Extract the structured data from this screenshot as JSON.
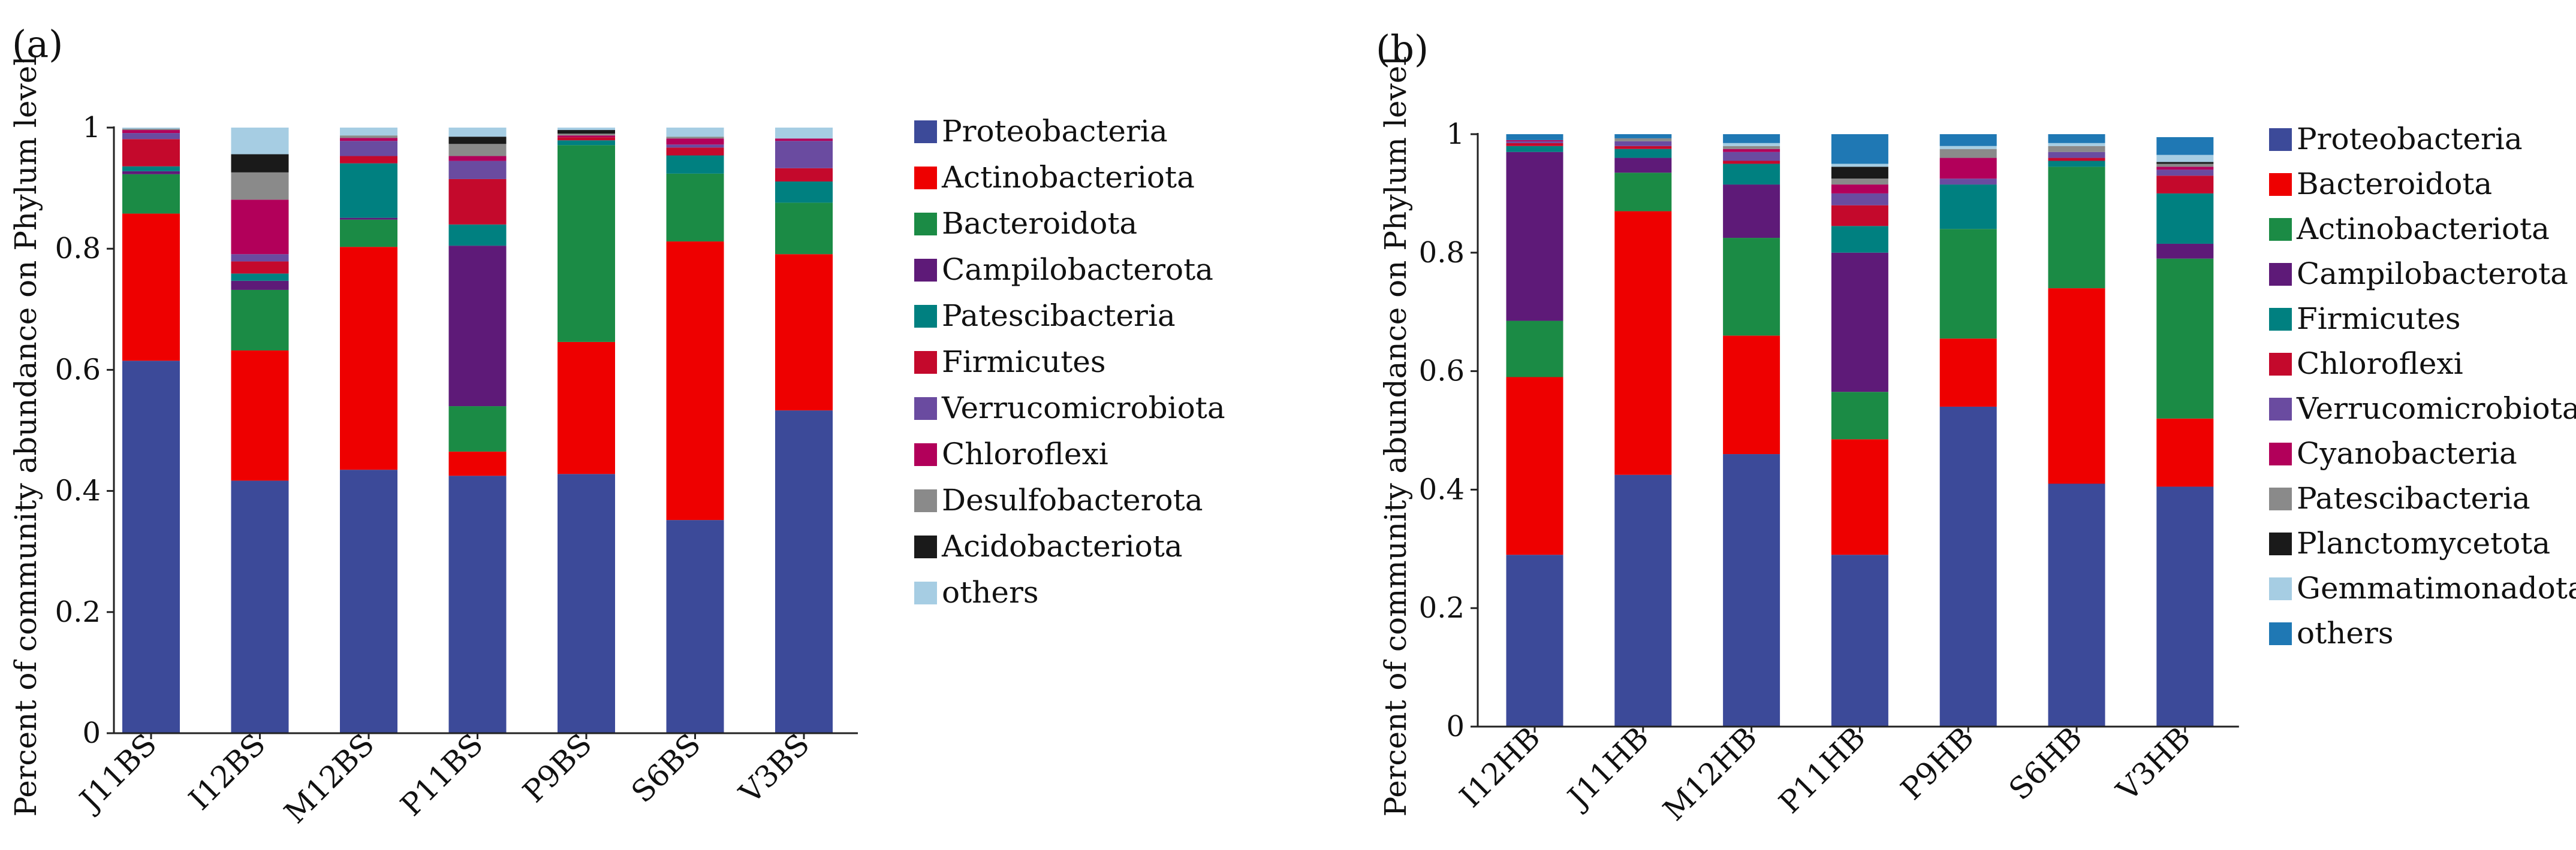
{
  "chart_data": [
    {
      "type": "bar",
      "stacked": true,
      "panel_label": "(a)",
      "ylabel": "Percent of community abundance on Phylum level",
      "ylim": [
        0,
        1
      ],
      "yticks": [
        "0",
        "0.2",
        "0.4",
        "0.6",
        "0.8",
        "1"
      ],
      "categories": [
        "J11BS",
        "I12BS",
        "M12BS",
        "P11BS",
        "P9BS",
        "S6BS",
        "V3BS"
      ],
      "series": [
        {
          "name": "Proteobacteria",
          "color": "#3c4a99",
          "values": [
            0.615,
            0.417,
            0.435,
            0.425,
            0.428,
            0.352,
            0.533
          ]
        },
        {
          "name": "Actinobacteriota",
          "color": "#ee0000",
          "values": [
            0.243,
            0.215,
            0.368,
            0.04,
            0.218,
            0.46,
            0.258
          ]
        },
        {
          "name": "Bacteroidota",
          "color": "#1b8b45",
          "values": [
            0.065,
            0.1,
            0.045,
            0.075,
            0.325,
            0.112,
            0.085
          ]
        },
        {
          "name": "Campilobacterota",
          "color": "#5e1a78",
          "values": [
            0.005,
            0.015,
            0.003,
            0.265,
            0.0,
            0.0,
            0.0
          ]
        },
        {
          "name": "Patescibacteria",
          "color": "#008080",
          "values": [
            0.008,
            0.012,
            0.09,
            0.035,
            0.008,
            0.03,
            0.035
          ]
        },
        {
          "name": "Firmicutes",
          "color": "#c4092c",
          "values": [
            0.045,
            0.02,
            0.012,
            0.075,
            0.005,
            0.013,
            0.022
          ]
        },
        {
          "name": "Verrucomicrobiota",
          "color": "#6a4ba0",
          "values": [
            0.01,
            0.012,
            0.025,
            0.03,
            0.0,
            0.005,
            0.045
          ]
        },
        {
          "name": "Chloroflexi",
          "color": "#b2005a",
          "values": [
            0.005,
            0.09,
            0.005,
            0.008,
            0.003,
            0.01,
            0.004
          ]
        },
        {
          "name": "Desulfobacterota",
          "color": "#8a8a8a",
          "values": [
            0.002,
            0.045,
            0.004,
            0.02,
            0.003,
            0.003,
            0.0
          ]
        },
        {
          "name": "Acidobacteriota",
          "color": "#1a1a1a",
          "values": [
            0.0,
            0.03,
            0.0,
            0.012,
            0.006,
            0.0,
            0.0
          ]
        },
        {
          "name": "others",
          "color": "#a6cde3",
          "values": [
            0.002,
            0.044,
            0.013,
            0.015,
            0.004,
            0.015,
            0.018
          ]
        }
      ]
    },
    {
      "type": "bar",
      "stacked": true,
      "panel_label": "(b)",
      "ylabel": "Percent of community abundance on Phylum level",
      "ylim": [
        0,
        1
      ],
      "yticks": [
        "0",
        "0.2",
        "0.4",
        "0.6",
        "0.8",
        "1"
      ],
      "categories": [
        "I12HB",
        "J11HB",
        "M12HB",
        "P11HB",
        "P9HB",
        "S6HB",
        "V3HB"
      ],
      "series": [
        {
          "name": "Proteobacteria",
          "color": "#3c4a99",
          "values": [
            0.29,
            0.425,
            0.46,
            0.29,
            0.54,
            0.41,
            0.405
          ]
        },
        {
          "name": "Bacteroidota",
          "color": "#ee0000",
          "values": [
            0.3,
            0.445,
            0.2,
            0.195,
            0.115,
            0.33,
            0.115
          ]
        },
        {
          "name": "Actinobacteriota",
          "color": "#1b8b45",
          "values": [
            0.095,
            0.065,
            0.165,
            0.08,
            0.185,
            0.205,
            0.27
          ]
        },
        {
          "name": "Campilobacterota",
          "color": "#5e1a78",
          "values": [
            0.285,
            0.025,
            0.09,
            0.235,
            0.0,
            0.0,
            0.025
          ]
        },
        {
          "name": "Firmicutes",
          "color": "#008080",
          "values": [
            0.01,
            0.015,
            0.035,
            0.045,
            0.075,
            0.01,
            0.085
          ]
        },
        {
          "name": "Chloroflexi",
          "color": "#c4092c",
          "values": [
            0.005,
            0.005,
            0.005,
            0.035,
            0.0,
            0.005,
            0.03
          ]
        },
        {
          "name": "Verrucomicrobiota",
          "color": "#6a4ba0",
          "values": [
            0.003,
            0.008,
            0.015,
            0.02,
            0.01,
            0.01,
            0.01
          ]
        },
        {
          "name": "Cyanobacteria",
          "color": "#b2005a",
          "values": [
            0.002,
            0.0,
            0.005,
            0.015,
            0.035,
            0.0,
            0.005
          ]
        },
        {
          "name": "Patescibacteria",
          "color": "#8a8a8a",
          "values": [
            0.0,
            0.005,
            0.005,
            0.01,
            0.015,
            0.01,
            0.005
          ]
        },
        {
          "name": "Planctomycetota",
          "color": "#1a1a1a",
          "values": [
            0.0,
            0.0,
            0.0,
            0.02,
            0.0,
            0.0,
            0.003
          ]
        },
        {
          "name": "Gemmatimonadota",
          "color": "#a6cde3",
          "values": [
            0.0,
            0.0,
            0.005,
            0.005,
            0.005,
            0.005,
            0.012
          ]
        },
        {
          "name": "others",
          "color": "#1f78b4",
          "values": [
            0.01,
            0.007,
            0.015,
            0.05,
            0.02,
            0.015,
            0.03
          ]
        }
      ]
    }
  ]
}
